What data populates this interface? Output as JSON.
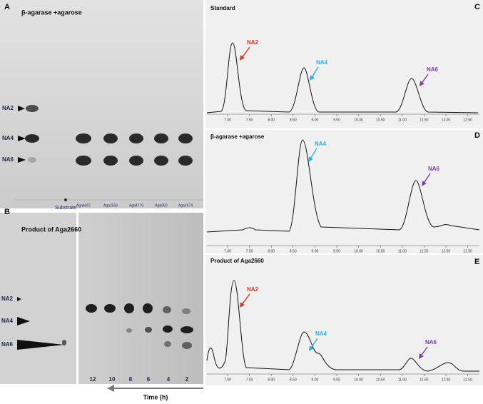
{
  "panels": {
    "A": {
      "label": "A",
      "title": "β-agarase +agarose",
      "markers": [
        "NA2",
        "NA4",
        "NA6"
      ],
      "lanes": [
        "Substrate",
        "Aga4007",
        "Aga2593",
        "Aga4779",
        "Aga950",
        "Aga1974"
      ]
    },
    "B": {
      "label": "B",
      "title": "Product of  Aga2660",
      "markers": [
        "NA2",
        "NA4",
        "NA6"
      ],
      "lanes": [
        "12",
        "10",
        "8",
        "6",
        "4",
        "2"
      ],
      "axis_label": "Time (h)"
    },
    "C": {
      "label": "C",
      "title": "Standard",
      "peaks": [
        "NA2",
        "NA4",
        "NA6"
      ]
    },
    "D": {
      "label": "D",
      "title": "β-agarase +agarose",
      "peaks": [
        "NA4",
        "NA6"
      ]
    },
    "E": {
      "label": "E",
      "title": "Product of  Aga2660",
      "peaks": [
        "NA2",
        "NA4",
        "NA6"
      ]
    }
  },
  "x_ticks": [
    "7.00",
    "7.50",
    "8.00",
    "8.50",
    "9.00",
    "9.50",
    "10.00",
    "10.50",
    "11.00",
    "11.50",
    "12.00",
    "12.50"
  ]
}
